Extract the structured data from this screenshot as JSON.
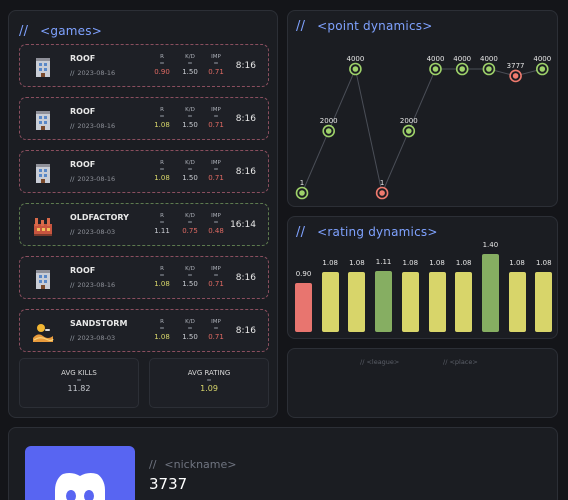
{
  "games": {
    "title": "<games>",
    "slashes": "//",
    "items": [
      {
        "map": "ROOF",
        "icon": "building-icon",
        "date": "2023-08-16",
        "r": "0.90",
        "r_color": "red",
        "kd": "1.50",
        "kd_color": "gray",
        "imp": "0.71",
        "imp_color": "red",
        "duration": "8:16",
        "result": "loss"
      },
      {
        "map": "ROOF",
        "icon": "building-icon",
        "date": "2023-08-16",
        "r": "1.08",
        "r_color": "yellow",
        "kd": "1.50",
        "kd_color": "gray",
        "imp": "0.71",
        "imp_color": "red",
        "duration": "8:16",
        "result": "loss"
      },
      {
        "map": "ROOF",
        "icon": "building-icon",
        "date": "2023-08-16",
        "r": "1.08",
        "r_color": "yellow",
        "kd": "1.50",
        "kd_color": "gray",
        "imp": "0.71",
        "imp_color": "red",
        "duration": "8:16",
        "result": "loss"
      },
      {
        "map": "OLDFACTORY",
        "icon": "factory-icon",
        "date": "2023-08-03",
        "r": "1.11",
        "r_color": "gray",
        "kd": "0.75",
        "kd_color": "red",
        "imp": "0.48",
        "imp_color": "red",
        "duration": "16:14",
        "result": "win"
      },
      {
        "map": "ROOF",
        "icon": "building-icon",
        "date": "2023-08-16",
        "r": "1.08",
        "r_color": "yellow",
        "kd": "1.50",
        "kd_color": "gray",
        "imp": "0.71",
        "imp_color": "red",
        "duration": "8:16",
        "result": "loss"
      },
      {
        "map": "SANDSTORM",
        "icon": "sandstorm-icon",
        "date": "2023-08-03",
        "r": "1.08",
        "r_color": "yellow",
        "kd": "1.50",
        "kd_color": "gray",
        "imp": "0.71",
        "imp_color": "red",
        "duration": "8:16",
        "result": "loss"
      }
    ],
    "labels": {
      "r": "R",
      "kd": "K/D",
      "imp": "IMP",
      "eq": "="
    },
    "avg_kills": {
      "label": "AVG KILLS",
      "eq": "=",
      "value": "11.82"
    },
    "avg_rating": {
      "label": "AVG RATING",
      "eq": "=",
      "value": "1.09"
    }
  },
  "point_dynamics": {
    "title": "<point dynamics>",
    "slashes": "//",
    "chart_data": {
      "type": "line",
      "x": [
        1,
        2,
        3,
        4,
        5,
        6,
        7,
        8,
        9,
        10
      ],
      "values": [
        1,
        2000,
        4000,
        1,
        2000,
        4000,
        4000,
        4000,
        3777,
        4000
      ],
      "labels": [
        "1",
        "2000",
        "4000",
        "1",
        "2000",
        "4000",
        "4000",
        "4000",
        "3777",
        "4000"
      ],
      "point_status": [
        "good",
        "good",
        "good",
        "bad",
        "good",
        "good",
        "good",
        "good",
        "bad",
        "good"
      ],
      "ylim": [
        1,
        4000
      ]
    }
  },
  "rating_dynamics": {
    "title": "<rating dynamics>",
    "slashes": "//",
    "chart_data": {
      "type": "bar",
      "values": [
        0.9,
        1.08,
        1.08,
        1.11,
        1.08,
        1.08,
        1.08,
        1.4,
        1.08,
        1.08
      ],
      "labels": [
        "0.90",
        "1.08",
        "1.08",
        "1.11",
        "1.08",
        "1.08",
        "1.08",
        "1.40",
        "1.08",
        "1.08"
      ],
      "ylim": [
        0,
        1.4
      ]
    }
  },
  "league": {
    "league_label": "// <league>",
    "place_label": "// <place>"
  },
  "profile": {
    "nick_label": "<nickname>",
    "slashes": "//",
    "nick_value": "3737",
    "icon": "discord-icon"
  },
  "colors": {
    "accent": "#7fa2ff",
    "good": "#9ed26a",
    "bad": "#f07a6e",
    "bar_red": "#e8756f",
    "bar_yellow": "#d8d56a",
    "bar_green": "#86ae62",
    "discord": "#5865f2"
  }
}
